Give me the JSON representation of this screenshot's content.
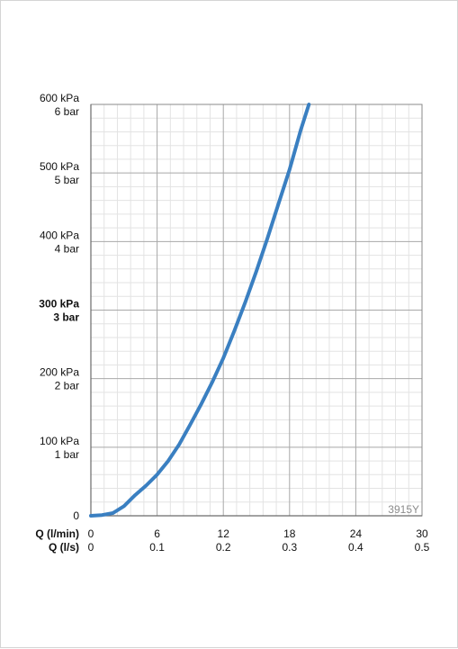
{
  "chart_data": {
    "type": "line",
    "title": "",
    "x_axis_rows": [
      {
        "label": "Q (l/min)",
        "ticks": [
          "0",
          "6",
          "12",
          "18",
          "24",
          "30"
        ]
      },
      {
        "label": "Q (l/s)",
        "ticks": [
          "0",
          "0.1",
          "0.2",
          "0.3",
          "0.4",
          "0.5"
        ]
      }
    ],
    "xlim": [
      0,
      30
    ],
    "ylim": [
      0,
      600
    ],
    "y_ticks": [
      {
        "value": 0,
        "kpa": "0",
        "bar": ""
      },
      {
        "value": 100,
        "kpa": "100 kPa",
        "bar": "1 bar"
      },
      {
        "value": 200,
        "kpa": "200 kPa",
        "bar": "2 bar"
      },
      {
        "value": 300,
        "kpa": "300 kPa",
        "bar": "3 bar",
        "bold": true
      },
      {
        "value": 400,
        "kpa": "400 kPa",
        "bar": "4 bar"
      },
      {
        "value": 500,
        "kpa": "500 kPa",
        "bar": "5 bar"
      },
      {
        "value": 600,
        "kpa": "600 kPa",
        "bar": "6 bar"
      }
    ],
    "grid": true,
    "code_label": "3915Y",
    "series": [
      {
        "color": "#3a7fc1",
        "x": [
          0,
          1,
          2,
          3,
          4,
          5,
          6,
          7,
          8,
          9,
          10,
          11,
          12,
          13,
          14,
          15,
          16,
          17,
          18,
          19,
          19.75
        ],
        "y": [
          0,
          1,
          4,
          14,
          30,
          44,
          60,
          80,
          104,
          133,
          163,
          195,
          230,
          270,
          312,
          357,
          405,
          455,
          505,
          562,
          600
        ]
      }
    ]
  }
}
